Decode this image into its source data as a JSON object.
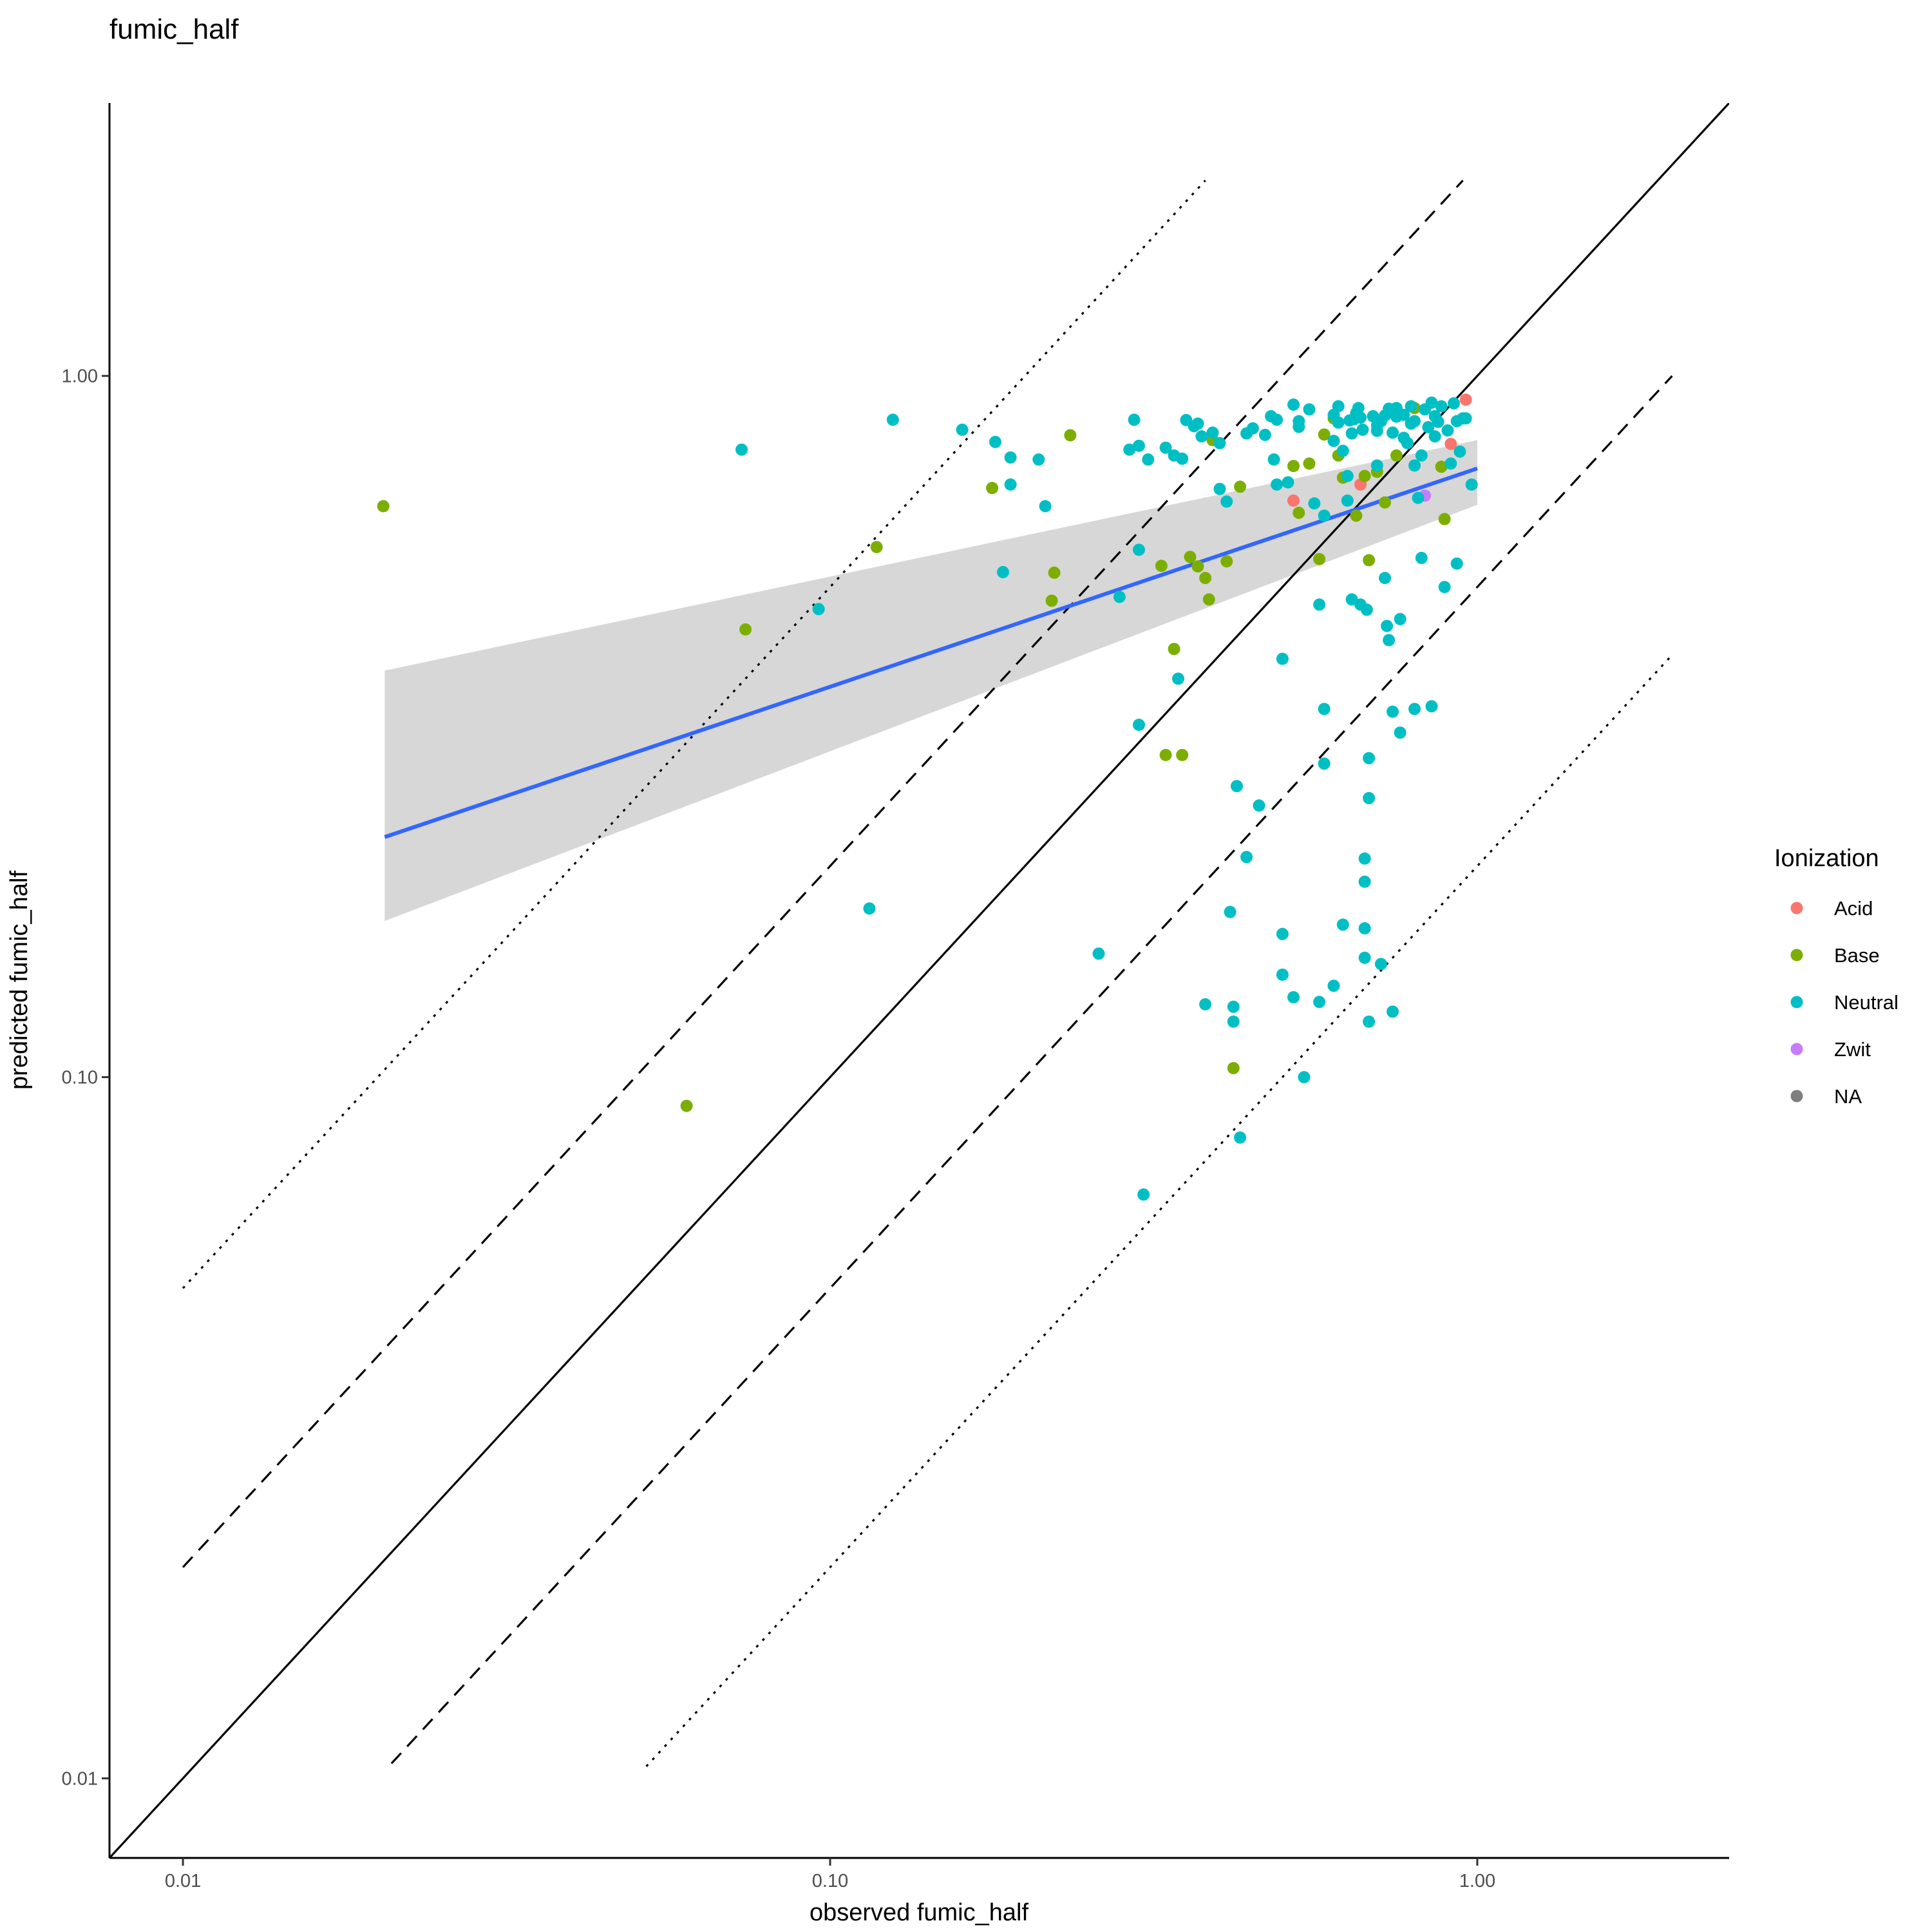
{
  "chart_data": {
    "type": "scatter",
    "title": "fumic_half",
    "xlabel": "observed fumic_half",
    "ylabel": "predicted fumic_half",
    "x_scale": "log10",
    "y_scale": "log10",
    "xlim": [
      0.0077,
      2.45
    ],
    "ylim": [
      0.0077,
      2.45
    ],
    "x_ticks": [
      0.01,
      0.1,
      1.0
    ],
    "x_tick_labels": [
      "0.01",
      "0.10",
      "1.00"
    ],
    "y_ticks": [
      0.01,
      0.1,
      1.0
    ],
    "y_tick_labels": [
      "0.01",
      "0.10",
      "1.00"
    ],
    "grid": false,
    "legend": {
      "title": "Ionization",
      "position": "right",
      "entries": [
        {
          "label": "Acid",
          "color": "#F8766D"
        },
        {
          "label": "Base",
          "color": "#7CAE00"
        },
        {
          "label": "Neutral",
          "color": "#00BFC4"
        },
        {
          "label": "Zwit",
          "color": "#C77CFF"
        },
        {
          "label": "NA",
          "color": "#7F7F7F"
        }
      ]
    },
    "reference_lines": [
      {
        "style": "solid",
        "fold": 1,
        "x": [
          0.0077,
          2.45
        ]
      },
      {
        "style": "dashed",
        "fold": 2,
        "x": [
          0.01,
          0.95
        ]
      },
      {
        "style": "dashed",
        "fold": 0.5,
        "x": [
          0.021,
          2.0
        ]
      },
      {
        "style": "dotted",
        "fold": 5,
        "x": [
          0.01,
          0.38
        ]
      },
      {
        "style": "dotted",
        "fold": 0.2,
        "x": [
          0.052,
          2.0
        ]
      }
    ],
    "fit": {
      "color": "#3366FF",
      "ribbon_color": "#D5D5D5",
      "x": [
        0.0205,
        1.0
      ],
      "y": [
        0.22,
        0.738
      ],
      "band_lower": [
        0.167,
        0.655
      ],
      "band_upper": [
        0.38,
        0.81
      ]
    },
    "series": [
      {
        "name": "Acid",
        "color": "#F8766D",
        "points": [
          [
            0.52,
            0.664
          ],
          [
            0.66,
            0.7
          ],
          [
            0.91,
            0.8
          ],
          [
            0.96,
            0.925
          ]
        ]
      },
      {
        "name": "Base",
        "color": "#7CAE00",
        "points": [
          [
            0.0204,
            0.652
          ],
          [
            0.06,
            0.091
          ],
          [
            0.074,
            0.435
          ],
          [
            0.118,
            0.57
          ],
          [
            0.178,
            0.692
          ],
          [
            0.22,
            0.478
          ],
          [
            0.222,
            0.524
          ],
          [
            0.235,
            0.823
          ],
          [
            0.325,
            0.536
          ],
          [
            0.33,
            0.288
          ],
          [
            0.34,
            0.408
          ],
          [
            0.35,
            0.288
          ],
          [
            0.36,
            0.552
          ],
          [
            0.37,
            0.535
          ],
          [
            0.38,
            0.515
          ],
          [
            0.385,
            0.48
          ],
          [
            0.39,
            0.81
          ],
          [
            0.41,
            0.544
          ],
          [
            0.42,
            0.103
          ],
          [
            0.43,
            0.695
          ],
          [
            0.52,
            0.744
          ],
          [
            0.53,
            0.638
          ],
          [
            0.55,
            0.75
          ],
          [
            0.57,
            0.548
          ],
          [
            0.58,
            0.825
          ],
          [
            0.6,
            0.87
          ],
          [
            0.61,
            0.77
          ],
          [
            0.62,
            0.716
          ],
          [
            0.65,
            0.632
          ],
          [
            0.67,
            0.72
          ],
          [
            0.68,
            0.546
          ],
          [
            0.7,
            0.73
          ],
          [
            0.72,
            0.66
          ],
          [
            0.75,
            0.77
          ],
          [
            0.8,
            0.9
          ],
          [
            0.88,
            0.742
          ],
          [
            0.89,
            0.625
          ]
        ]
      },
      {
        "name": "Zwit",
        "color": "#C77CFF",
        "points": [
          [
            0.83,
            0.675
          ]
        ]
      },
      {
        "name": "Neutral",
        "color": "#00BFC4",
        "points": [
          [
            0.073,
            0.785
          ],
          [
            0.096,
            0.465
          ],
          [
            0.115,
            0.174
          ],
          [
            0.125,
            0.866
          ],
          [
            0.16,
            0.838
          ],
          [
            0.18,
            0.805
          ],
          [
            0.185,
            0.525
          ],
          [
            0.19,
            0.765
          ],
          [
            0.19,
            0.7
          ],
          [
            0.21,
            0.76
          ],
          [
            0.215,
            0.652
          ],
          [
            0.26,
            0.15
          ],
          [
            0.28,
            0.484
          ],
          [
            0.29,
            0.785
          ],
          [
            0.295,
            0.866
          ],
          [
            0.3,
            0.795
          ],
          [
            0.3,
            0.318
          ],
          [
            0.3,
            0.565
          ],
          [
            0.305,
            0.068
          ],
          [
            0.31,
            0.76
          ],
          [
            0.33,
            0.79
          ],
          [
            0.34,
            0.77
          ],
          [
            0.345,
            0.37
          ],
          [
            0.35,
            0.762
          ],
          [
            0.355,
            0.865
          ],
          [
            0.365,
            0.848
          ],
          [
            0.37,
            0.855
          ],
          [
            0.375,
            0.82
          ],
          [
            0.38,
            0.127
          ],
          [
            0.39,
            0.83
          ],
          [
            0.4,
            0.802
          ],
          [
            0.4,
            0.69
          ],
          [
            0.41,
            0.662
          ],
          [
            0.415,
            0.172
          ],
          [
            0.42,
            0.126
          ],
          [
            0.425,
            0.26
          ],
          [
            0.43,
            0.082
          ],
          [
            0.44,
            0.828
          ],
          [
            0.45,
            0.842
          ],
          [
            0.46,
            0.244
          ],
          [
            0.47,
            0.824
          ],
          [
            0.48,
            0.876
          ],
          [
            0.485,
            0.76
          ],
          [
            0.49,
            0.7
          ],
          [
            0.49,
            0.866
          ],
          [
            0.5,
            0.16
          ],
          [
            0.5,
            0.14
          ],
          [
            0.5,
            0.395
          ],
          [
            0.51,
            0.705
          ],
          [
            0.52,
            0.91
          ],
          [
            0.53,
            0.846
          ],
          [
            0.53,
            0.862
          ],
          [
            0.54,
            0.1
          ],
          [
            0.55,
            0.896
          ],
          [
            0.56,
            0.658
          ],
          [
            0.57,
            0.128
          ],
          [
            0.57,
            0.472
          ],
          [
            0.58,
            0.632
          ],
          [
            0.58,
            0.335
          ],
          [
            0.58,
            0.28
          ],
          [
            0.6,
            0.808
          ],
          [
            0.6,
            0.88
          ],
          [
            0.61,
            0.905
          ],
          [
            0.61,
            0.858
          ],
          [
            0.62,
            0.782
          ],
          [
            0.63,
            0.72
          ],
          [
            0.63,
            0.664
          ],
          [
            0.635,
            0.864
          ],
          [
            0.64,
            0.828
          ],
          [
            0.645,
            0.868
          ],
          [
            0.65,
            0.885
          ],
          [
            0.655,
            0.9
          ],
          [
            0.66,
            0.472
          ],
          [
            0.665,
            0.838
          ],
          [
            0.67,
            0.205
          ],
          [
            0.67,
            0.19
          ],
          [
            0.67,
            0.163
          ],
          [
            0.67,
            0.148
          ],
          [
            0.675,
            0.464
          ],
          [
            0.68,
            0.25
          ],
          [
            0.68,
            0.285
          ],
          [
            0.69,
            0.876
          ],
          [
            0.7,
            0.745
          ],
          [
            0.7,
            0.85
          ],
          [
            0.71,
            0.862
          ],
          [
            0.72,
            0.515
          ],
          [
            0.725,
            0.44
          ],
          [
            0.73,
            0.42
          ],
          [
            0.74,
            0.332
          ],
          [
            0.75,
            0.875
          ],
          [
            0.76,
            0.45
          ],
          [
            0.76,
            0.31
          ],
          [
            0.77,
            0.816
          ],
          [
            0.78,
            0.802
          ],
          [
            0.79,
            0.855
          ],
          [
            0.8,
            0.862
          ],
          [
            0.8,
            0.745
          ],
          [
            0.81,
            0.67
          ],
          [
            0.82,
            0.77
          ],
          [
            0.83,
            0.896
          ],
          [
            0.84,
            0.845
          ],
          [
            0.85,
            0.916
          ],
          [
            0.86,
            0.82
          ],
          [
            0.87,
            0.86
          ],
          [
            0.88,
            0.905
          ],
          [
            0.9,
            0.836
          ],
          [
            0.91,
            0.75
          ],
          [
            0.92,
            0.914
          ],
          [
            0.93,
            0.862
          ],
          [
            0.94,
            0.78
          ],
          [
            0.95,
            0.87
          ],
          [
            0.96,
            0.87
          ],
          [
            0.98,
            0.7
          ],
          [
            0.42,
            0.12
          ],
          [
            0.6,
            0.135
          ],
          [
            0.62,
            0.165
          ],
          [
            0.64,
            0.48
          ],
          [
            0.71,
            0.145
          ],
          [
            0.74,
            0.124
          ],
          [
            0.82,
            0.55
          ],
          [
            0.89,
            0.5
          ],
          [
            0.93,
            0.54
          ],
          [
            0.52,
            0.13
          ],
          [
            0.44,
            0.206
          ],
          [
            0.68,
            0.12
          ],
          [
            0.8,
            0.335
          ],
          [
            0.85,
            0.338
          ],
          [
            0.75,
            0.9
          ],
          [
            0.7,
            0.835
          ],
          [
            0.72,
            0.878
          ],
          [
            0.79,
            0.905
          ],
          [
            0.66,
            0.872
          ],
          [
            0.73,
            0.898
          ],
          [
            0.77,
            0.88
          ],
          [
            0.74,
            0.83
          ],
          [
            0.86,
            0.876
          ]
        ]
      }
    ]
  }
}
